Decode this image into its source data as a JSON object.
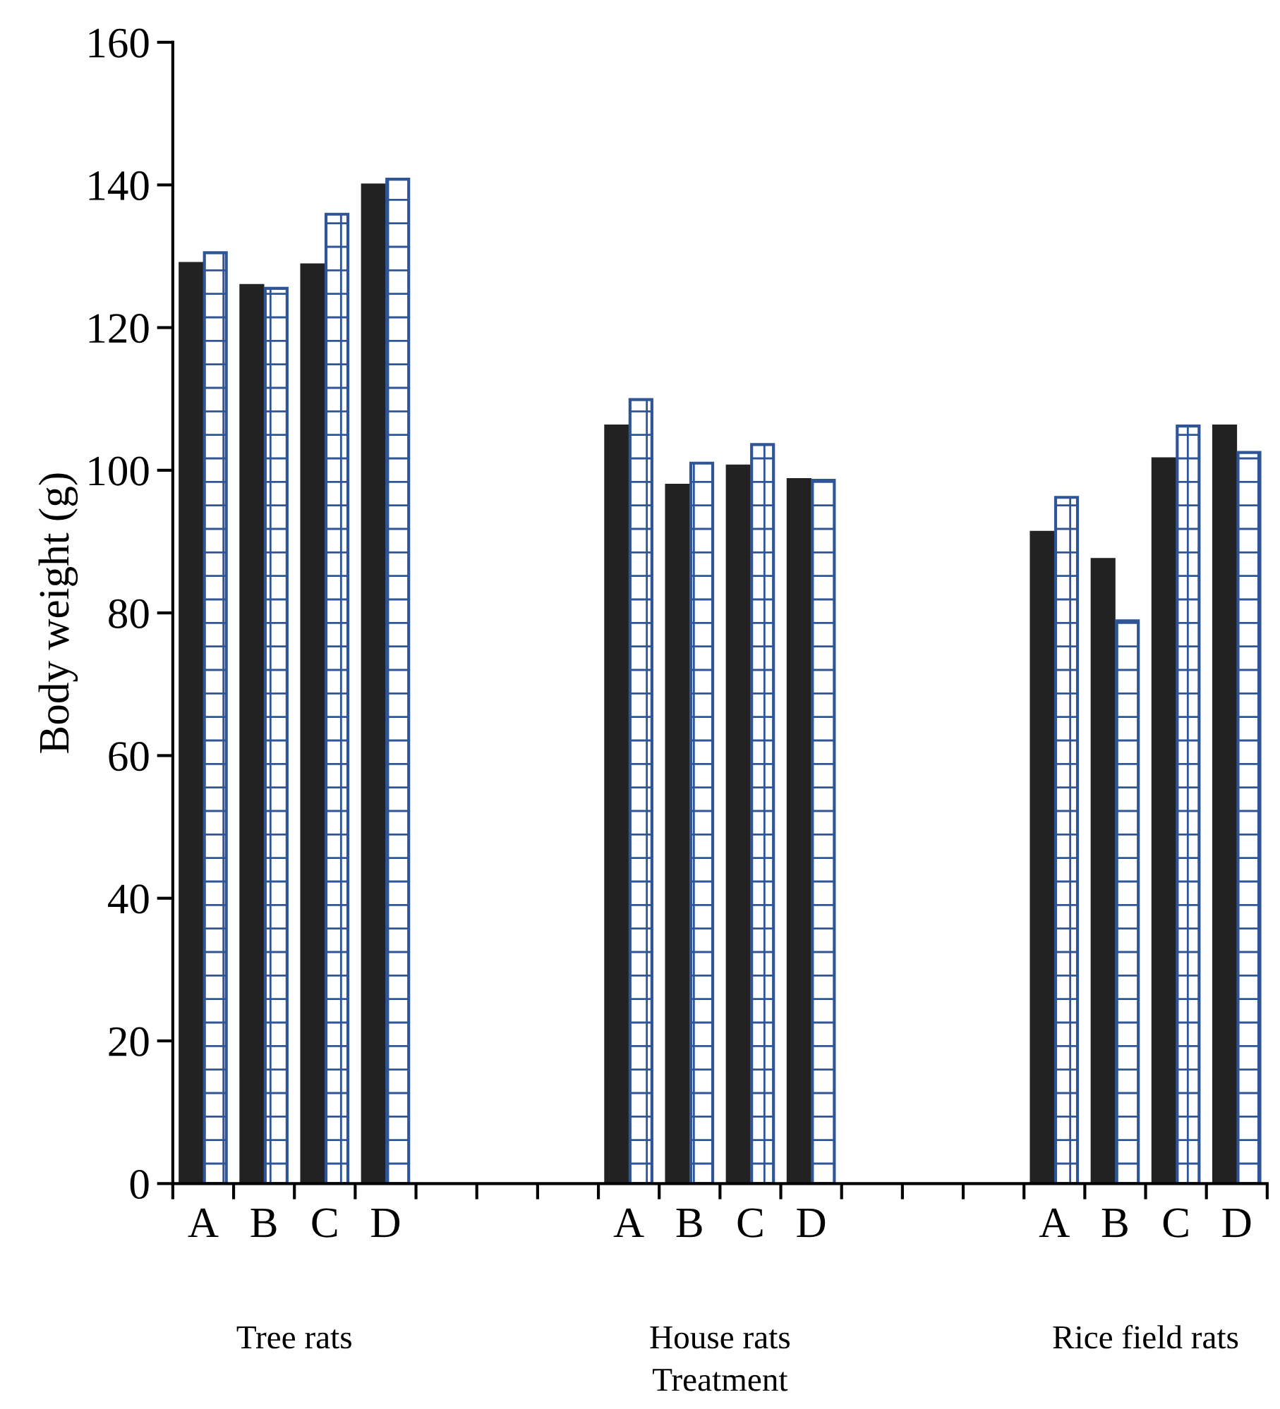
{
  "chart_data": {
    "type": "bar",
    "xlabel": "Treatment",
    "ylabel": "Body weight (g)",
    "categories": [
      "A",
      "B",
      "C",
      "D",
      null,
      null,
      null,
      "A",
      "B",
      "C",
      "D",
      null,
      null,
      null,
      "A",
      "B",
      "C",
      "D"
    ],
    "series": [
      {
        "color": "#222222",
        "values": [
          129.0,
          125.9,
          128.8,
          140.0,
          null,
          null,
          null,
          106.2,
          97.9,
          100.6,
          98.7,
          null,
          null,
          null,
          91.3,
          87.5,
          101.6,
          106.2
        ]
      },
      {
        "color": "#2f5597",
        "values": [
          130.5,
          125.5,
          135.9,
          140.8,
          null,
          null,
          null,
          109.9,
          101.0,
          103.6,
          98.6,
          null,
          null,
          null,
          96.2,
          78.9,
          106.2,
          102.5
        ]
      }
    ],
    "annotations": [
      "Tree rats",
      "House rats",
      "Rice field rats"
    ],
    "ylim": [
      0,
      160
    ],
    "yticks": [
      0,
      20,
      40,
      60,
      80,
      100,
      120,
      140,
      160
    ],
    "grid": false,
    "legend": false
  }
}
